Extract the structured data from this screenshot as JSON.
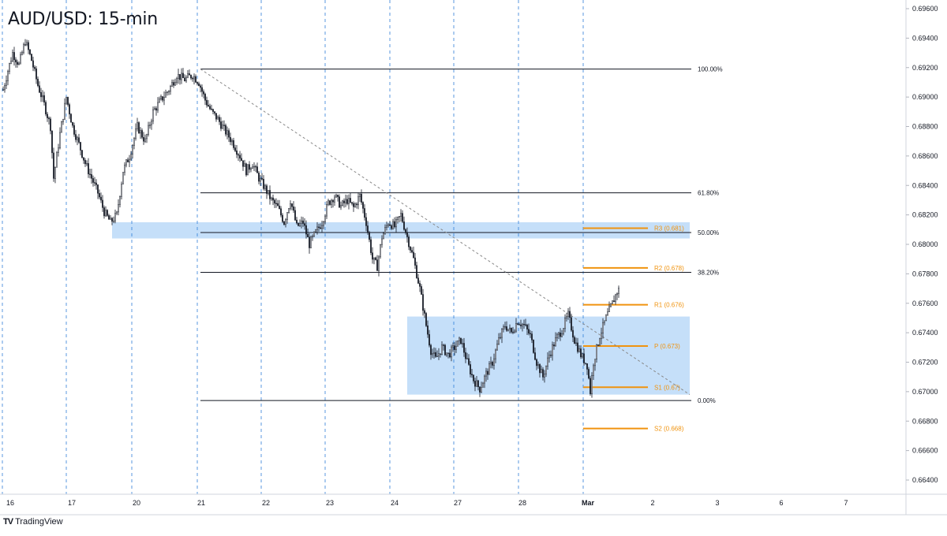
{
  "chart_data": {
    "type": "candlestick",
    "title": "AUD/USD: 15-min",
    "brand": "TradingView",
    "brand_logo": "TV",
    "colors": {
      "candles": "#131722",
      "grid_dashed": "#2f7ed8",
      "zone": "#bfdcf8",
      "fib": "#131722",
      "pivots": "#f0930f",
      "trendline": "#888888"
    },
    "ylim": [
      0.663,
      0.696
    ],
    "y_ticks": [
      "0.69600",
      "0.69400",
      "0.69200",
      "0.69000",
      "0.68800",
      "0.68600",
      "0.68400",
      "0.68200",
      "0.68000",
      "0.67800",
      "0.67600",
      "0.67400",
      "0.67200",
      "0.67000",
      "0.66800",
      "0.66600",
      "0.66400"
    ],
    "x_labels": [
      "16",
      "17",
      "20",
      "21",
      "22",
      "23",
      "24",
      "27",
      "28",
      "Mar",
      "2",
      "3",
      "6",
      "7"
    ],
    "x_label_bold": "Mar",
    "day_separators": [
      "17",
      "20",
      "21",
      "22",
      "23",
      "24",
      "27",
      "28",
      "Mar"
    ],
    "price_path": [
      [
        0.0,
        0.6905
      ],
      [
        0.3,
        0.6918
      ],
      [
        0.6,
        0.693
      ],
      [
        1.0,
        0.6922
      ],
      [
        1.4,
        0.6938
      ],
      [
        1.8,
        0.6925
      ],
      [
        2.2,
        0.6908
      ],
      [
        2.6,
        0.6895
      ],
      [
        3.0,
        0.688
      ],
      [
        3.2,
        0.6845
      ],
      [
        3.6,
        0.6875
      ],
      [
        4.0,
        0.69
      ],
      [
        4.4,
        0.688
      ],
      [
        4.8,
        0.6868
      ],
      [
        5.2,
        0.6855
      ],
      [
        5.6,
        0.6845
      ],
      [
        6.0,
        0.6835
      ],
      [
        6.4,
        0.6822
      ],
      [
        6.8,
        0.6815
      ],
      [
        7.2,
        0.682
      ],
      [
        7.6,
        0.685
      ],
      [
        8.0,
        0.686
      ],
      [
        8.5,
        0.688
      ],
      [
        9.0,
        0.687
      ],
      [
        9.5,
        0.689
      ],
      [
        10.0,
        0.6898
      ],
      [
        10.5,
        0.6905
      ],
      [
        11.0,
        0.6915
      ],
      [
        11.5,
        0.6912
      ],
      [
        12.0,
        0.6915
      ],
      [
        12.4,
        0.691
      ],
      [
        12.8,
        0.6898
      ],
      [
        13.2,
        0.689
      ],
      [
        13.6,
        0.6885
      ],
      [
        14.0,
        0.6878
      ],
      [
        14.5,
        0.687
      ],
      [
        15.0,
        0.686
      ],
      [
        15.4,
        0.685
      ],
      [
        15.8,
        0.6855
      ],
      [
        16.2,
        0.6845
      ],
      [
        16.6,
        0.6838
      ],
      [
        17.0,
        0.683
      ],
      [
        17.4,
        0.6825
      ],
      [
        17.8,
        0.6815
      ],
      [
        18.2,
        0.683
      ],
      [
        18.6,
        0.6812
      ],
      [
        19.0,
        0.6815
      ],
      [
        19.4,
        0.68
      ],
      [
        19.8,
        0.6808
      ],
      [
        20.2,
        0.6815
      ],
      [
        20.6,
        0.6828
      ],
      [
        21.0,
        0.6833
      ],
      [
        21.4,
        0.6826
      ],
      [
        21.8,
        0.683
      ],
      [
        22.2,
        0.6825
      ],
      [
        22.6,
        0.6833
      ],
      [
        23.0,
        0.6815
      ],
      [
        23.4,
        0.679
      ],
      [
        23.7,
        0.6785
      ],
      [
        24.0,
        0.6805
      ],
      [
        24.4,
        0.6815
      ],
      [
        24.8,
        0.6812
      ],
      [
        25.2,
        0.682
      ],
      [
        25.6,
        0.6805
      ],
      [
        26.0,
        0.679
      ],
      [
        26.4,
        0.677
      ],
      [
        26.8,
        0.6745
      ],
      [
        27.1,
        0.6728
      ],
      [
        27.4,
        0.6722
      ],
      [
        27.8,
        0.673
      ],
      [
        28.2,
        0.6725
      ],
      [
        28.6,
        0.673
      ],
      [
        29.0,
        0.6735
      ],
      [
        29.4,
        0.672
      ],
      [
        29.8,
        0.6708
      ],
      [
        30.2,
        0.6702
      ],
      [
        30.6,
        0.6712
      ],
      [
        31.0,
        0.672
      ],
      [
        31.4,
        0.6735
      ],
      [
        31.8,
        0.6745
      ],
      [
        32.2,
        0.674
      ],
      [
        32.6,
        0.6748
      ],
      [
        33.0,
        0.6745
      ],
      [
        33.4,
        0.6738
      ],
      [
        33.8,
        0.672
      ],
      [
        34.2,
        0.671
      ],
      [
        34.6,
        0.6725
      ],
      [
        35.0,
        0.6735
      ],
      [
        35.4,
        0.6742
      ],
      [
        35.8,
        0.6752
      ],
      [
        36.2,
        0.6735
      ],
      [
        36.6,
        0.6725
      ],
      [
        37.0,
        0.6718
      ],
      [
        37.2,
        0.67
      ],
      [
        37.4,
        0.672
      ],
      [
        37.8,
        0.6738
      ],
      [
        38.2,
        0.675
      ],
      [
        38.6,
        0.676
      ],
      [
        38.9,
        0.6768
      ],
      [
        39.1,
        0.677
      ]
    ],
    "trendline": {
      "from": [
        12.5,
        0.6919
      ],
      "to": [
        43.5,
        0.6698
      ]
    },
    "zones": [
      {
        "x0": 6.9,
        "x1": 43.5,
        "y0": 0.6804,
        "y1": 0.6815
      },
      {
        "x0": 25.6,
        "x1": 43.5,
        "y0": 0.6698,
        "y1": 0.6751
      }
    ],
    "fib_levels": [
      {
        "label": "100.00%",
        "value": 0.6919
      },
      {
        "label": "61.80%",
        "value": 0.6835
      },
      {
        "label": "50.00%",
        "value": 0.6808
      },
      {
        "label": "38.20%",
        "value": 0.6781
      },
      {
        "label": "0.00%",
        "value": 0.6694
      }
    ],
    "fib_x_start": 12.5,
    "fib_x_end": 43.6,
    "pivots": [
      {
        "label": "R3 (0.681)",
        "value": 0.6811
      },
      {
        "label": "R2 (0.678)",
        "value": 0.6784
      },
      {
        "label": "R1 (0.676)",
        "value": 0.6759
      },
      {
        "label": "P (0.673)",
        "value": 0.6731
      },
      {
        "label": "S1 (0.67)",
        "value": 0.6703
      },
      {
        "label": "S2 (0.668)",
        "value": 0.6675
      }
    ],
    "pivot_x_start": 36.3,
    "pivot_x_end": 40.3,
    "legend_position": "none",
    "grid": "vertical day separators only"
  }
}
